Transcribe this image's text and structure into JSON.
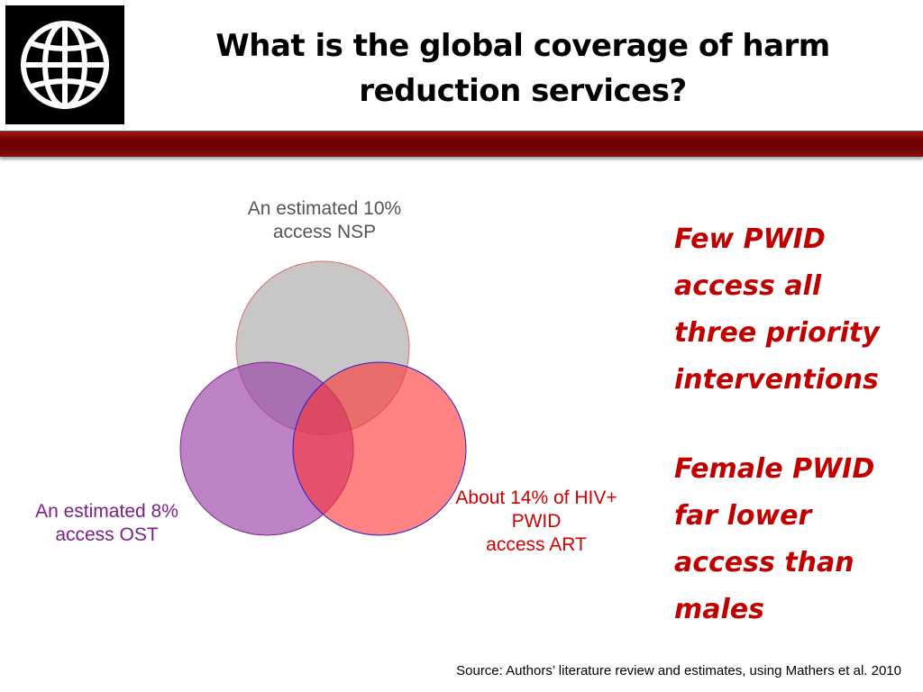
{
  "slide": {
    "title_lines": [
      "What is the global coverage of harm",
      "reduction services?"
    ],
    "source": "Source:  Authors’ literature review and estimates, using Mathers et al. 2010"
  },
  "venn": {
    "nsp": {
      "lines": [
        "An estimated 10%",
        "access NSP"
      ],
      "color": "#bdbdbd"
    },
    "ost": {
      "lines": [
        "An estimated 8%",
        "access OST"
      ],
      "color": "#a35bb0"
    },
    "art": {
      "lines": [
        "About 14% of HIV+",
        "PWID",
        "access ART"
      ],
      "color": "#ff5c5c"
    }
  },
  "callouts": [
    {
      "lines": [
        "Few PWID",
        "access all",
        "three priority",
        "interventions"
      ]
    },
    {
      "lines": [
        "Female PWID",
        "far lower",
        "access than",
        "males"
      ]
    }
  ],
  "colors": {
    "band": "#7a0000",
    "callout": "#c00000"
  },
  "logo": {
    "icon": "globe-icon"
  }
}
